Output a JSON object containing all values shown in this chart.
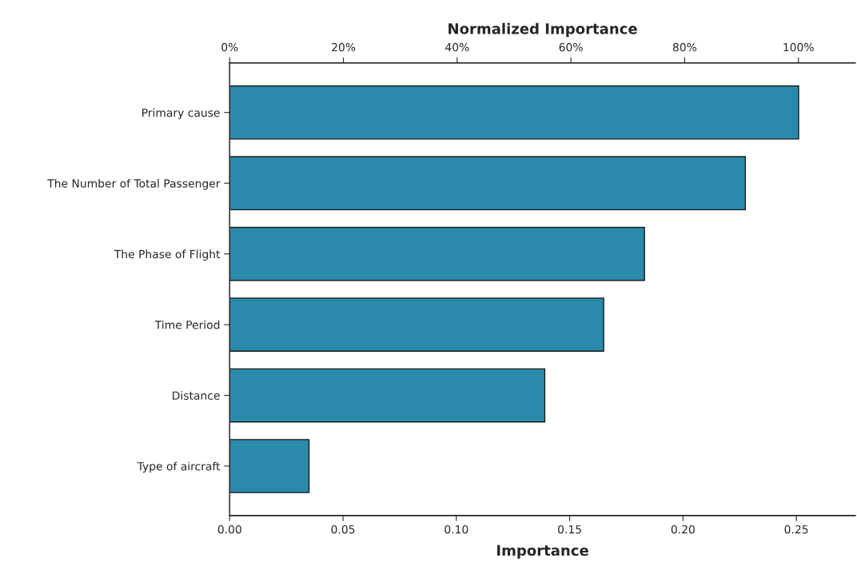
{
  "chart_data": {
    "type": "bar",
    "orientation": "horizontal",
    "categories": [
      "Primary cause",
      "The Number of Total Passenger",
      "The Phase of Flight",
      "Time Period",
      "Distance",
      "Type of aircraft"
    ],
    "values": [
      0.251,
      0.2275,
      0.183,
      0.165,
      0.139,
      0.035
    ],
    "color": "#2a8aac",
    "xlabel": "Importance",
    "x2label": "Normalized Importance",
    "xlim": [
      0,
      0.276
    ],
    "xticks": [
      {
        "value": 0,
        "label": "0.00"
      },
      {
        "value": 0.05,
        "label": "0.05"
      },
      {
        "value": 0.1,
        "label": "0.10"
      },
      {
        "value": 0.15,
        "label": "0.15"
      },
      {
        "value": 0.2,
        "label": "0.20"
      },
      {
        "value": 0.25,
        "label": "0.25"
      }
    ],
    "x2lim": [
      0,
      110
    ],
    "x2ticks": [
      {
        "value": 0,
        "label": "0%"
      },
      {
        "value": 20,
        "label": "20%"
      },
      {
        "value": 40,
        "label": "40%"
      },
      {
        "value": 60,
        "label": "60%"
      },
      {
        "value": 80,
        "label": "80%"
      },
      {
        "value": 100,
        "label": "100%"
      }
    ],
    "grid": false
  }
}
